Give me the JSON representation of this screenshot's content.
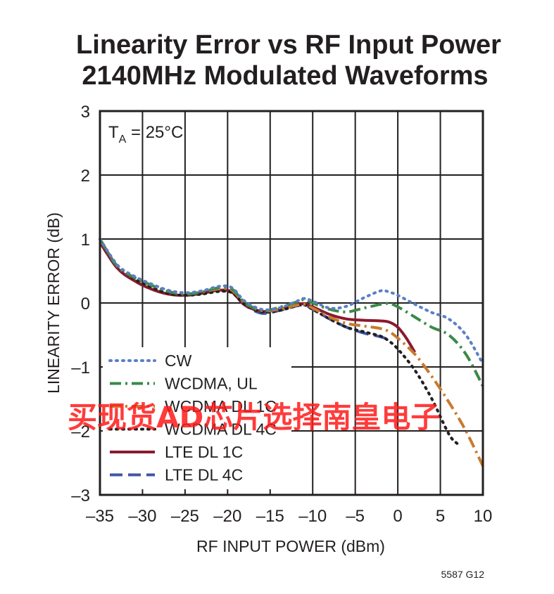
{
  "chart_data": {
    "type": "line",
    "title": "Linearity Error vs RF Input Power",
    "subtitle": "2140MHz Modulated Waveforms",
    "xlabel": "RF INPUT POWER (dBm)",
    "ylabel": "LINEARITY ERROR (dB)",
    "xlim": [
      -35,
      10
    ],
    "ylim": [
      -3,
      3
    ],
    "x_ticks": [
      -35,
      -30,
      -25,
      -20,
      -15,
      -10,
      -5,
      0,
      5,
      10
    ],
    "y_ticks": [
      -3,
      -2,
      -1,
      0,
      1,
      2,
      3
    ],
    "x_tick_labels": [
      "–35",
      "–30",
      "–25",
      "–20",
      "–15",
      "–10",
      "–5",
      "0",
      "5",
      "10"
    ],
    "y_tick_labels": [
      "–3",
      "–2",
      "–1",
      "0",
      "1",
      "2",
      "3"
    ],
    "grid": true,
    "legend_position": "bottom-left",
    "annotation": {
      "main": "T",
      "sub": "A",
      "rest": " = 25°C"
    },
    "figure_code": "5587 G12",
    "series": [
      {
        "name": "CW",
        "color": "#5b7fc4",
        "style": "dotted",
        "x": [
          -35,
          -33,
          -31,
          -29,
          -27,
          -25,
          -23,
          -21,
          -19.5,
          -18,
          -16,
          -14,
          -12,
          -11,
          -10,
          -8,
          -6,
          -4,
          -2,
          -1,
          0,
          2,
          4,
          6,
          8,
          10
        ],
        "y": [
          1.0,
          0.6,
          0.42,
          0.3,
          0.2,
          0.16,
          0.19,
          0.26,
          0.24,
          0.03,
          -0.1,
          -0.08,
          0.02,
          0.07,
          0.03,
          -0.08,
          -0.05,
          0.08,
          0.19,
          0.17,
          0.12,
          -0.02,
          -0.15,
          -0.25,
          -0.5,
          -0.95
        ]
      },
      {
        "name": "WCDMA, UL",
        "color": "#3a8a47",
        "style": "dashdot",
        "x": [
          -35,
          -33,
          -31,
          -29,
          -27,
          -25,
          -23,
          -21,
          -19.5,
          -18,
          -16,
          -14,
          -12,
          -11,
          -10,
          -8,
          -6,
          -4,
          -2,
          -1,
          0,
          2,
          4,
          6,
          8,
          10
        ],
        "y": [
          1.0,
          0.58,
          0.4,
          0.28,
          0.18,
          0.14,
          0.17,
          0.24,
          0.22,
          0.01,
          -0.12,
          -0.07,
          0.01,
          0.05,
          0.0,
          -0.1,
          -0.14,
          -0.08,
          -0.02,
          -0.01,
          -0.06,
          -0.22,
          -0.38,
          -0.5,
          -0.8,
          -1.3
        ]
      },
      {
        "name": "WCDMA DL 1C",
        "color": "#c87a2e",
        "style": "dashdot",
        "x": [
          -35,
          -33,
          -31,
          -29,
          -27,
          -25,
          -23,
          -21,
          -19.5,
          -18,
          -16,
          -14,
          -12,
          -11,
          -10,
          -8,
          -6,
          -4,
          -2,
          -1,
          0,
          2,
          4,
          6,
          8,
          10
        ],
        "y": [
          1.0,
          0.58,
          0.4,
          0.28,
          0.18,
          0.14,
          0.17,
          0.22,
          0.2,
          0.0,
          -0.12,
          -0.1,
          -0.04,
          -0.02,
          -0.08,
          -0.22,
          -0.32,
          -0.36,
          -0.4,
          -0.45,
          -0.55,
          -0.8,
          -1.15,
          -1.55,
          -2.0,
          -2.55
        ]
      },
      {
        "name": "WCDMA DL 4C",
        "color": "#231f20",
        "style": "dotted",
        "x": [
          -35,
          -33,
          -31,
          -29,
          -27,
          -25,
          -23,
          -21,
          -19.5,
          -18,
          -16,
          -14,
          -12,
          -11,
          -10,
          -8,
          -6,
          -4,
          -2,
          -1,
          0,
          2,
          4,
          6,
          7
        ],
        "y": [
          1.0,
          0.6,
          0.38,
          0.25,
          0.15,
          0.12,
          0.14,
          0.18,
          0.16,
          -0.02,
          -0.14,
          -0.12,
          -0.05,
          -0.03,
          -0.1,
          -0.25,
          -0.38,
          -0.45,
          -0.52,
          -0.6,
          -0.72,
          -1.05,
          -1.5,
          -2.05,
          -2.2
        ]
      },
      {
        "name": "LTE DL 1C",
        "color": "#8b1a2e",
        "style": "solid",
        "x": [
          -35,
          -33,
          -31,
          -29,
          -27,
          -25,
          -23,
          -21,
          -19.5,
          -18,
          -16,
          -14,
          -12,
          -11,
          -10,
          -8,
          -6,
          -4,
          -2,
          -1,
          0,
          1,
          2
        ],
        "y": [
          0.95,
          0.55,
          0.35,
          0.22,
          0.14,
          0.12,
          0.15,
          0.2,
          0.17,
          -0.03,
          -0.13,
          -0.1,
          -0.03,
          -0.01,
          -0.06,
          -0.18,
          -0.25,
          -0.27,
          -0.28,
          -0.3,
          -0.38,
          -0.55,
          -0.77
        ]
      },
      {
        "name": "LTE DL 4C",
        "color": "#3f56a6",
        "style": "dashed",
        "x": [
          -35,
          -33,
          -31,
          -29,
          -27,
          -25,
          -23,
          -21,
          -19.5,
          -18,
          -16,
          -14,
          -12,
          -11,
          -10,
          -8,
          -6,
          -4,
          -2,
          -1
        ],
        "y": [
          0.95,
          0.55,
          0.35,
          0.22,
          0.14,
          0.12,
          0.15,
          0.2,
          0.17,
          -0.03,
          -0.16,
          -0.12,
          -0.05,
          -0.03,
          -0.1,
          -0.25,
          -0.38,
          -0.47,
          -0.53,
          -0.58
        ]
      }
    ]
  },
  "watermark": "买现货AD芯片选择南皇电子"
}
